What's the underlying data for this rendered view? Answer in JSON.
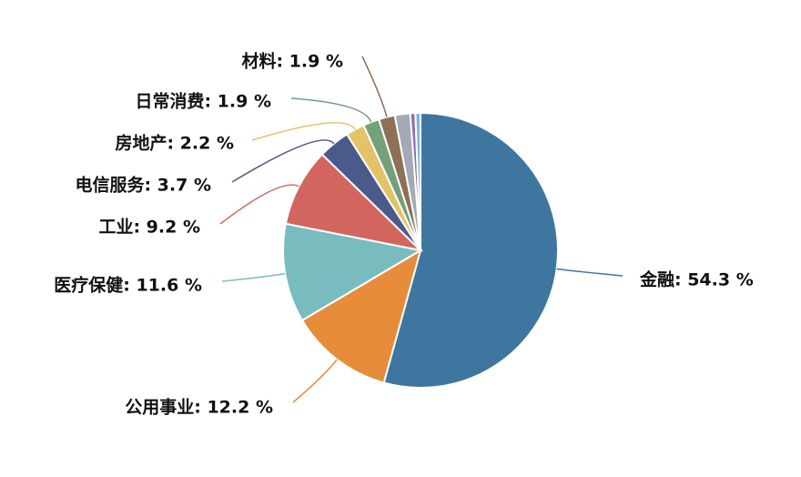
{
  "chart_data": {
    "type": "pie",
    "values": [
      54.3,
      12.2,
      11.6,
      9.2,
      3.7,
      2.2,
      1.9,
      1.9,
      1.8,
      0.6,
      0.6
    ],
    "value_labels": [
      "金融: 54.3 %",
      "公用事业: 12.2 %",
      "医疗保健: 11.6 %",
      "工业: 9.2 %",
      "电信服务: 3.7 %",
      "房地产: 2.2 %",
      "日常消费: 1.9 %",
      "材料: 1.9 %",
      null,
      null,
      null
    ],
    "colors": [
      "#3e76a0",
      "#e68c3a",
      "#79bcbf",
      "#d2665f",
      "#4a5a8a",
      "#e4c267",
      "#74a07a",
      "#8e7055",
      "#a3a9b5",
      "#8f6fb0",
      "#7cb7e0"
    ]
  }
}
